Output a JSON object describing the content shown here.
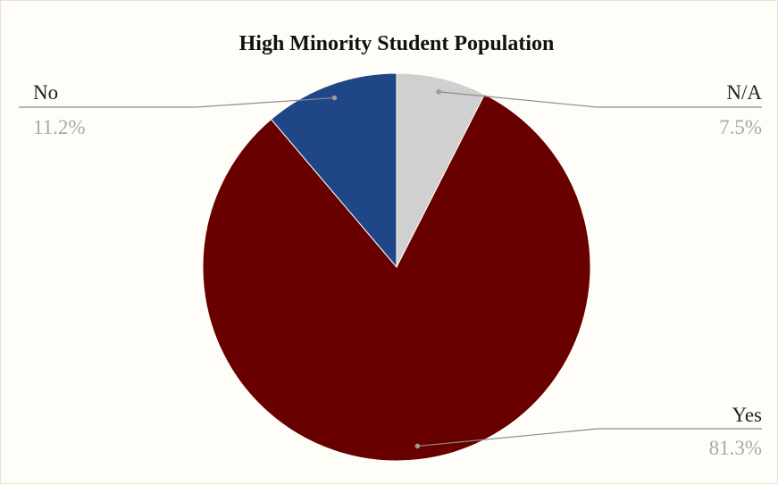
{
  "chart_data": {
    "type": "pie",
    "title": "High Minority Student Population",
    "slices": [
      {
        "label": "N/A",
        "value": 7.5,
        "display": "7.5%",
        "color": "#d0d0d0"
      },
      {
        "label": "Yes",
        "value": 81.3,
        "display": "81.3%",
        "color": "#680000"
      },
      {
        "label": "No",
        "value": 11.2,
        "display": "11.2%",
        "color": "#1f4788"
      }
    ],
    "legend": "none",
    "data_labels": "outside with leader lines"
  }
}
